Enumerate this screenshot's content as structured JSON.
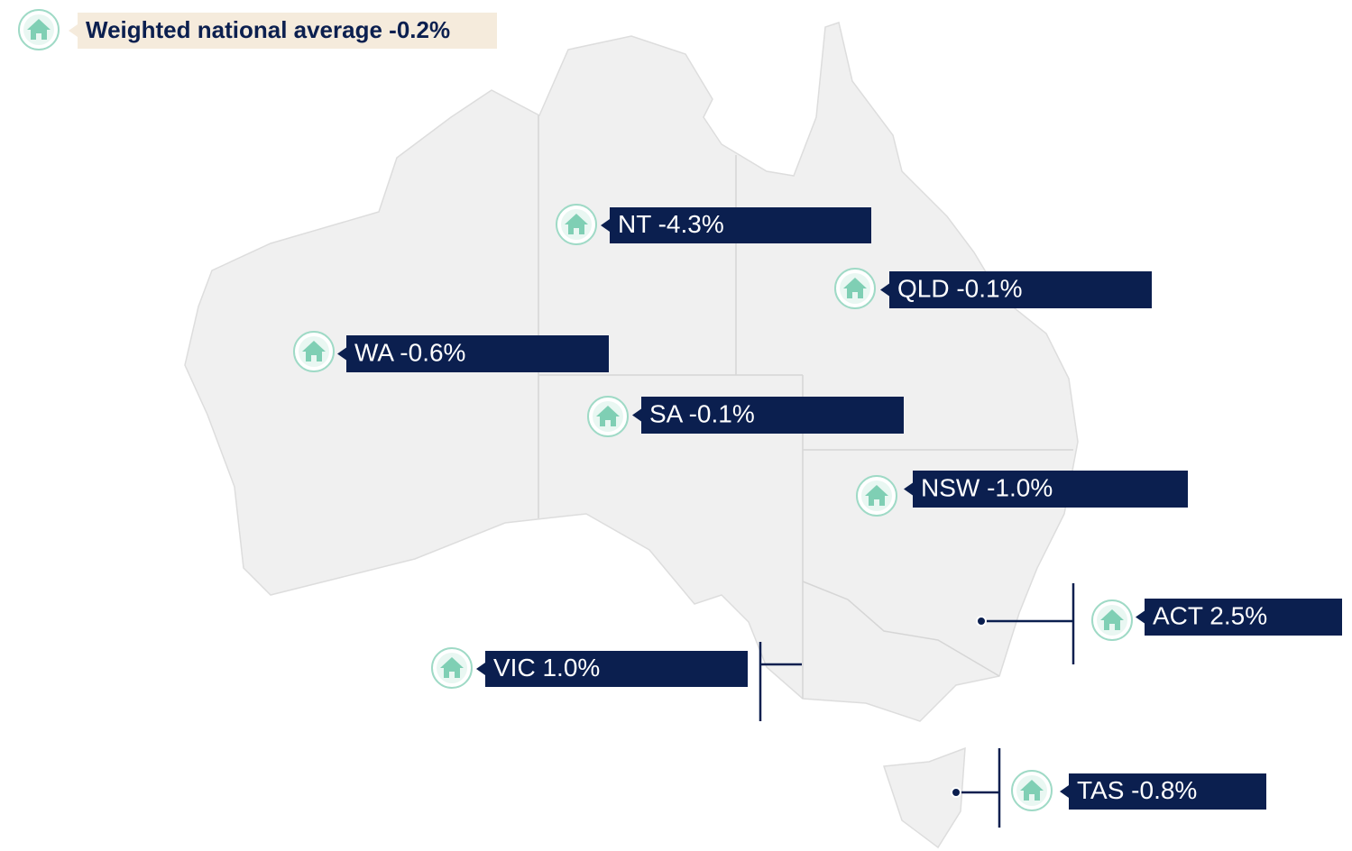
{
  "title": {
    "text": "Weighted national average",
    "value": "-0.2%"
  },
  "regions": [
    {
      "name": "NT",
      "value": "-4.3%"
    },
    {
      "name": "QLD",
      "value": "-0.1%"
    },
    {
      "name": "WA",
      "value": "-0.6%"
    },
    {
      "name": "SA",
      "value": "-0.1%"
    },
    {
      "name": "NSW",
      "value": "-1.0%"
    },
    {
      "name": "ACT",
      "value": "2.5%"
    },
    {
      "name": "VIC",
      "value": "1.0%"
    },
    {
      "name": "TAS",
      "value": "-0.8%"
    }
  ]
}
